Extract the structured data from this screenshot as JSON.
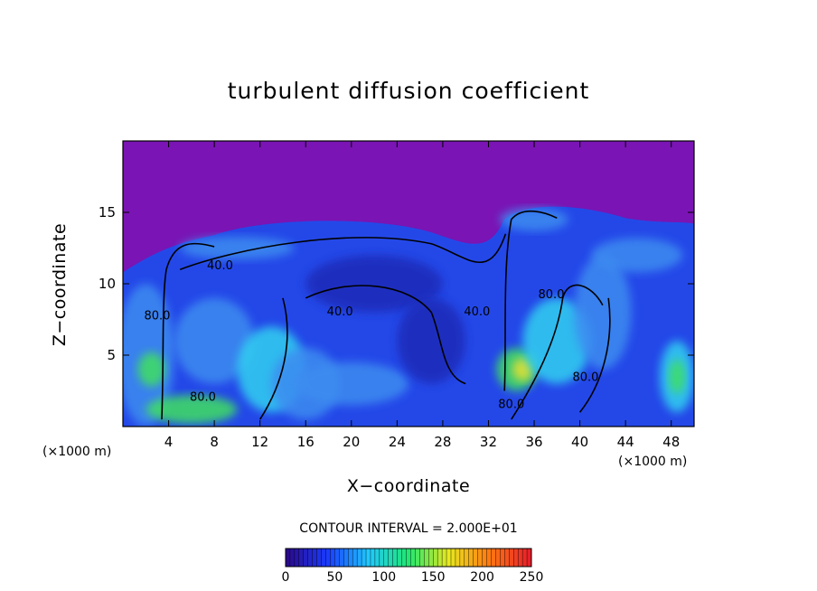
{
  "chart_data": {
    "type": "heatmap",
    "title": "turbulent diffusion coefficient",
    "xlabel": "X−coordinate",
    "ylabel": "Z−coordinate",
    "x_unit_label": "(×1000 m)",
    "xlim": [
      0,
      50
    ],
    "ylim": [
      0,
      20
    ],
    "x_ticks": [
      4,
      8,
      12,
      16,
      20,
      24,
      28,
      32,
      36,
      40,
      44,
      48
    ],
    "y_ticks": [
      5,
      10,
      15
    ],
    "contour_interval_text": "CONTOUR INTERVAL = 2.000E+01",
    "contour_labels": [
      {
        "text": "40.0",
        "x": 8.5,
        "y": 11.0
      },
      {
        "text": "40.0",
        "x": 19.0,
        "y": 7.8
      },
      {
        "text": "80.0",
        "x": 3.0,
        "y": 7.5
      },
      {
        "text": "80.0",
        "x": 7.0,
        "y": 1.8
      },
      {
        "text": "40.0",
        "x": 31.0,
        "y": 7.8
      },
      {
        "text": "80.0",
        "x": 34.0,
        "y": 1.3
      },
      {
        "text": "80.0",
        "x": 37.5,
        "y": 9.0
      },
      {
        "text": "80.0",
        "x": 40.5,
        "y": 3.2
      }
    ],
    "colorbar": {
      "ticks": [
        0,
        50,
        100,
        150,
        200,
        250
      ],
      "range": [
        0,
        250
      ],
      "colors": [
        "#2a0a8e",
        "#1a3cff",
        "#20c8ff",
        "#20e870",
        "#e8e820",
        "#ff7a10",
        "#e8202a"
      ]
    },
    "field_colors": {
      "background": "#7a14b4",
      "base": "#2448e8",
      "low": "#1a2ab8",
      "mid": "#3c8cf0",
      "high": "#30d0f0",
      "peak": "#40e060",
      "max": "#e8e030"
    }
  }
}
